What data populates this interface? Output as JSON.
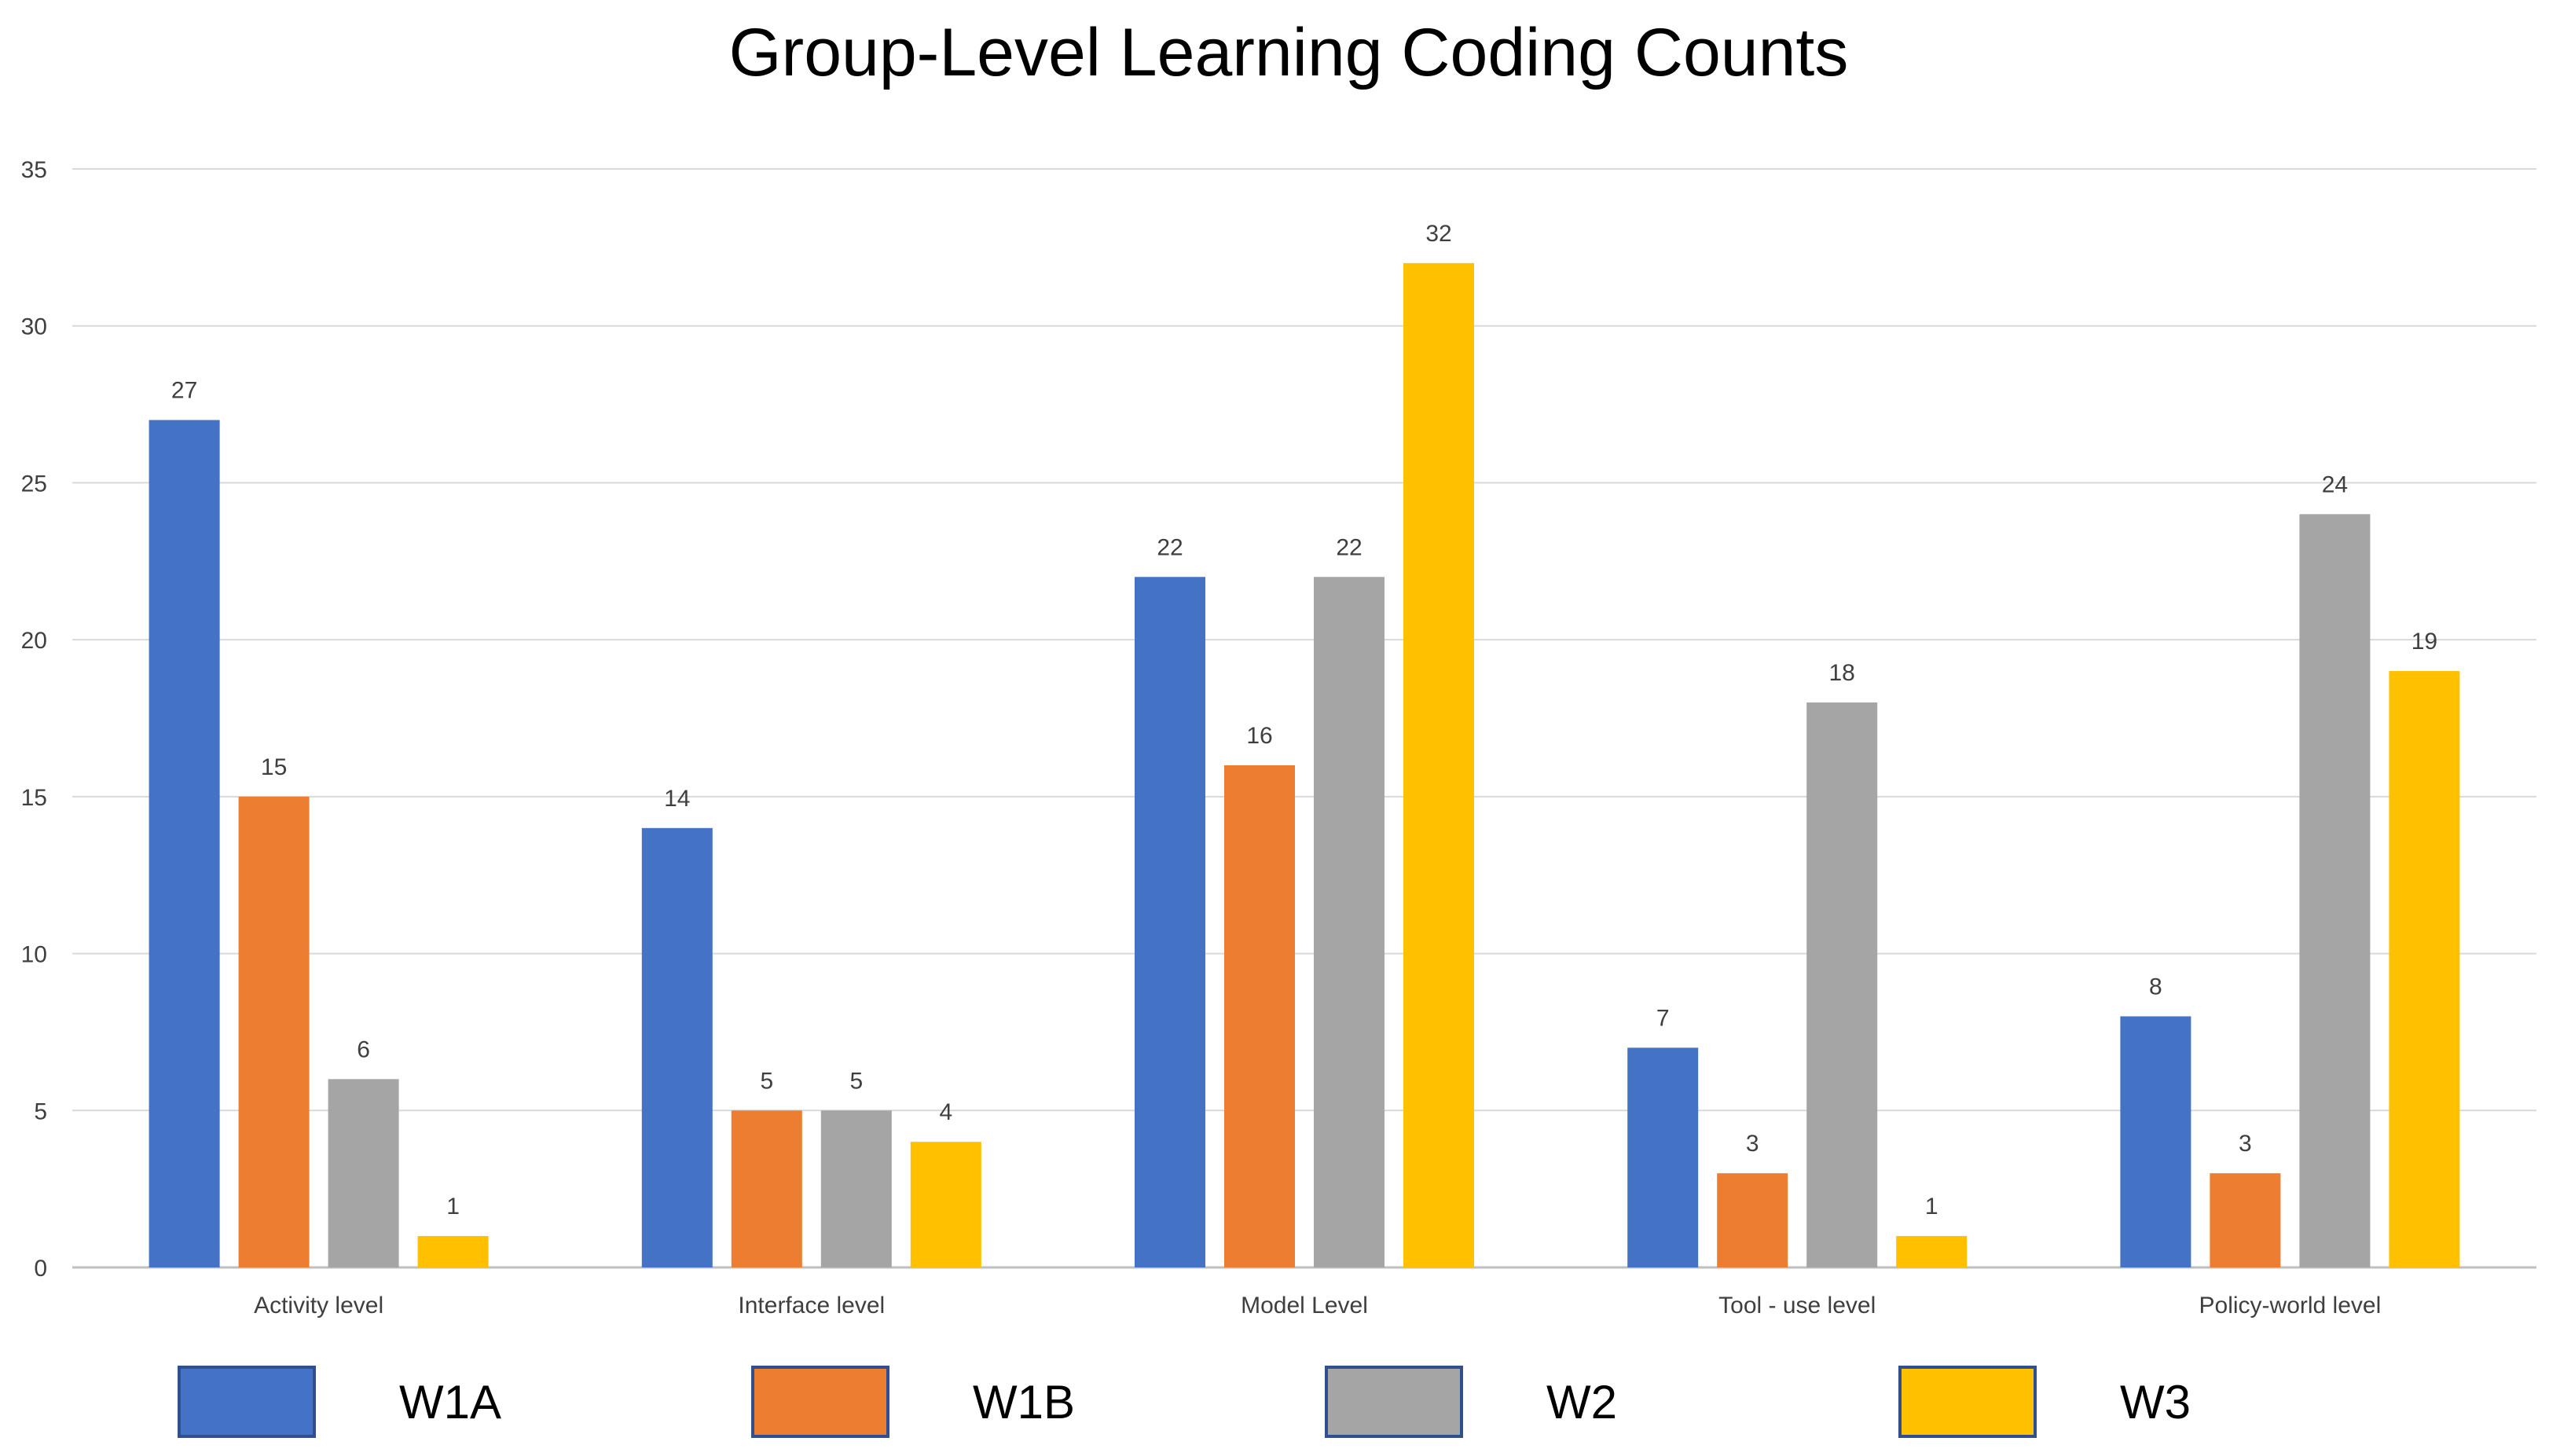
{
  "chart_data": {
    "type": "bar",
    "title": "Group-Level Learning Coding Counts",
    "categories": [
      "Activity level",
      "Interface level",
      "Model Level",
      "Tool - use level",
      "Policy-world level"
    ],
    "series": [
      {
        "name": "W1A",
        "color": "#4472c4",
        "values": [
          27,
          14,
          22,
          7,
          8
        ]
      },
      {
        "name": "W1B",
        "color": "#ed7d31",
        "values": [
          15,
          5,
          16,
          3,
          3
        ]
      },
      {
        "name": "W2",
        "color": "#a5a5a5",
        "values": [
          6,
          5,
          22,
          18,
          24
        ]
      },
      {
        "name": "W3",
        "color": "#ffc000",
        "values": [
          1,
          4,
          32,
          1,
          19
        ]
      }
    ],
    "ylim": [
      0,
      35
    ],
    "yticks": [
      0,
      5,
      10,
      15,
      20,
      25,
      30,
      35
    ],
    "xlabel": "",
    "ylabel": "",
    "grid": true,
    "legend_position": "bottom"
  }
}
